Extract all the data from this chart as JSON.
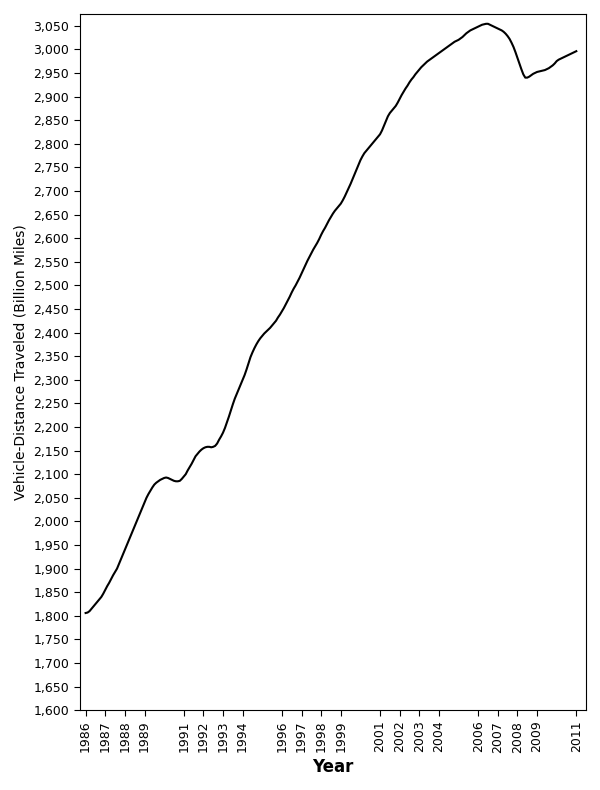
{
  "xlabel": "Year",
  "ylabel": "Vehicle-Distance Traveled (Billion Miles)",
  "background_color": "#ffffff",
  "line_color": "#000000",
  "line_width": 1.5,
  "ylim": [
    1600,
    3075
  ],
  "ytick_interval": 50,
  "x_tick_labels": [
    "1986",
    "1987",
    "1988",
    "1989",
    "1991",
    "1992",
    "1993",
    "1994",
    "1996",
    "1997",
    "1998",
    "1999",
    "2001",
    "2002",
    "2003",
    "2004",
    "2006",
    "2007",
    "2008",
    "2009",
    "2011"
  ],
  "data": {
    "1986.0": 1806,
    "1986.1": 1807,
    "1986.2": 1810,
    "1986.3": 1815,
    "1986.4": 1820,
    "1986.5": 1825,
    "1986.6": 1830,
    "1986.7": 1835,
    "1986.8": 1840,
    "1986.9": 1847,
    "1987.0": 1855,
    "1987.1": 1863,
    "1987.2": 1870,
    "1987.3": 1878,
    "1987.4": 1886,
    "1987.5": 1893,
    "1987.6": 1900,
    "1987.7": 1910,
    "1987.8": 1920,
    "1987.9": 1930,
    "1988.0": 1940,
    "1988.1": 1950,
    "1988.2": 1960,
    "1988.3": 1970,
    "1988.4": 1980,
    "1988.5": 1990,
    "1988.6": 2000,
    "1988.7": 2010,
    "1988.8": 2020,
    "1988.9": 2030,
    "1989.0": 2040,
    "1989.1": 2050,
    "1989.2": 2058,
    "1989.3": 2065,
    "1989.4": 2072,
    "1989.5": 2078,
    "1989.6": 2082,
    "1989.7": 2085,
    "1989.8": 2088,
    "1989.9": 2090,
    "1990.0": 2092,
    "1990.1": 2093,
    "1990.2": 2092,
    "1990.3": 2090,
    "1990.4": 2088,
    "1990.5": 2086,
    "1990.6": 2085,
    "1990.7": 2085,
    "1990.8": 2086,
    "1990.9": 2090,
    "1991.0": 2095,
    "1991.1": 2100,
    "1991.2": 2108,
    "1991.3": 2115,
    "1991.4": 2122,
    "1991.5": 2130,
    "1991.6": 2138,
    "1991.7": 2143,
    "1991.8": 2148,
    "1991.9": 2152,
    "1992.0": 2155,
    "1992.1": 2157,
    "1992.2": 2158,
    "1992.3": 2158,
    "1992.4": 2157,
    "1992.5": 2158,
    "1992.6": 2160,
    "1992.7": 2165,
    "1992.8": 2173,
    "1992.9": 2180,
    "1993.0": 2188,
    "1993.1": 2198,
    "1993.2": 2210,
    "1993.3": 2222,
    "1993.4": 2235,
    "1993.5": 2248,
    "1993.6": 2260,
    "1993.7": 2270,
    "1993.8": 2280,
    "1993.9": 2290,
    "1994.0": 2300,
    "1994.1": 2310,
    "1994.2": 2322,
    "1994.3": 2335,
    "1994.4": 2348,
    "1994.5": 2358,
    "1994.6": 2367,
    "1994.7": 2375,
    "1994.8": 2382,
    "1994.9": 2388,
    "1995.0": 2393,
    "1995.1": 2398,
    "1995.2": 2402,
    "1995.3": 2406,
    "1995.4": 2410,
    "1995.5": 2415,
    "1995.6": 2420,
    "1995.7": 2425,
    "1995.8": 2432,
    "1995.9": 2438,
    "1996.0": 2445,
    "1996.1": 2452,
    "1996.2": 2460,
    "1996.3": 2468,
    "1996.4": 2476,
    "1996.5": 2485,
    "1996.6": 2493,
    "1996.7": 2500,
    "1996.8": 2508,
    "1996.9": 2516,
    "1997.0": 2525,
    "1997.1": 2534,
    "1997.2": 2543,
    "1997.3": 2552,
    "1997.4": 2560,
    "1997.5": 2568,
    "1997.6": 2576,
    "1997.7": 2583,
    "1997.8": 2590,
    "1997.9": 2598,
    "1998.0": 2607,
    "1998.1": 2615,
    "1998.2": 2622,
    "1998.3": 2630,
    "1998.4": 2638,
    "1998.5": 2645,
    "1998.6": 2652,
    "1998.7": 2658,
    "1998.8": 2663,
    "1998.9": 2668,
    "1999.0": 2673,
    "1999.1": 2680,
    "1999.2": 2688,
    "1999.3": 2697,
    "1999.4": 2706,
    "1999.5": 2715,
    "1999.6": 2725,
    "1999.7": 2735,
    "1999.8": 2745,
    "1999.9": 2755,
    "2000.0": 2765,
    "2000.1": 2773,
    "2000.2": 2780,
    "2000.3": 2785,
    "2000.4": 2790,
    "2000.5": 2795,
    "2000.6": 2800,
    "2000.7": 2805,
    "2000.8": 2810,
    "2000.9": 2815,
    "2001.0": 2820,
    "2001.1": 2828,
    "2001.2": 2838,
    "2001.3": 2848,
    "2001.4": 2858,
    "2001.5": 2865,
    "2001.6": 2870,
    "2001.7": 2875,
    "2001.8": 2880,
    "2001.9": 2887,
    "2002.0": 2895,
    "2002.1": 2903,
    "2002.2": 2910,
    "2002.3": 2917,
    "2002.4": 2923,
    "2002.5": 2930,
    "2002.6": 2936,
    "2002.7": 2941,
    "2002.8": 2947,
    "2002.9": 2952,
    "2003.0": 2957,
    "2003.1": 2962,
    "2003.2": 2966,
    "2003.3": 2970,
    "2003.4": 2974,
    "2003.5": 2977,
    "2003.6": 2980,
    "2003.7": 2983,
    "2003.8": 2986,
    "2003.9": 2989,
    "2004.0": 2992,
    "2004.1": 2995,
    "2004.2": 2998,
    "2004.3": 3001,
    "2004.4": 3004,
    "2004.5": 3007,
    "2004.6": 3010,
    "2004.7": 3013,
    "2004.8": 3016,
    "2004.9": 3018,
    "2005.0": 3020,
    "2005.1": 3023,
    "2005.2": 3026,
    "2005.3": 3030,
    "2005.4": 3034,
    "2005.5": 3037,
    "2005.6": 3040,
    "2005.7": 3042,
    "2005.8": 3044,
    "2005.9": 3046,
    "2006.0": 3048,
    "2006.1": 3050,
    "2006.2": 3052,
    "2006.3": 3053,
    "2006.4": 3054,
    "2006.5": 3054,
    "2006.6": 3052,
    "2006.7": 3050,
    "2006.8": 3048,
    "2006.9": 3046,
    "2007.0": 3044,
    "2007.1": 3042,
    "2007.2": 3040,
    "2007.3": 3037,
    "2007.4": 3033,
    "2007.5": 3028,
    "2007.6": 3022,
    "2007.7": 3014,
    "2007.8": 3005,
    "2007.9": 2994,
    "2008.0": 2982,
    "2008.1": 2970,
    "2008.2": 2958,
    "2008.3": 2947,
    "2008.4": 2940,
    "2008.5": 2940,
    "2008.6": 2942,
    "2008.7": 2945,
    "2008.8": 2948,
    "2008.9": 2950,
    "2009.0": 2952,
    "2009.1": 2953,
    "2009.2": 2954,
    "2009.3": 2955,
    "2009.4": 2956,
    "2009.5": 2958,
    "2009.6": 2960,
    "2009.7": 2963,
    "2009.8": 2966,
    "2009.9": 2970,
    "2010.0": 2975,
    "2010.1": 2978,
    "2010.2": 2980,
    "2010.3": 2982,
    "2010.4": 2984,
    "2010.5": 2986,
    "2010.6": 2988,
    "2010.7": 2990,
    "2010.8": 2992,
    "2010.9": 2994,
    "2011.0": 2996
  }
}
